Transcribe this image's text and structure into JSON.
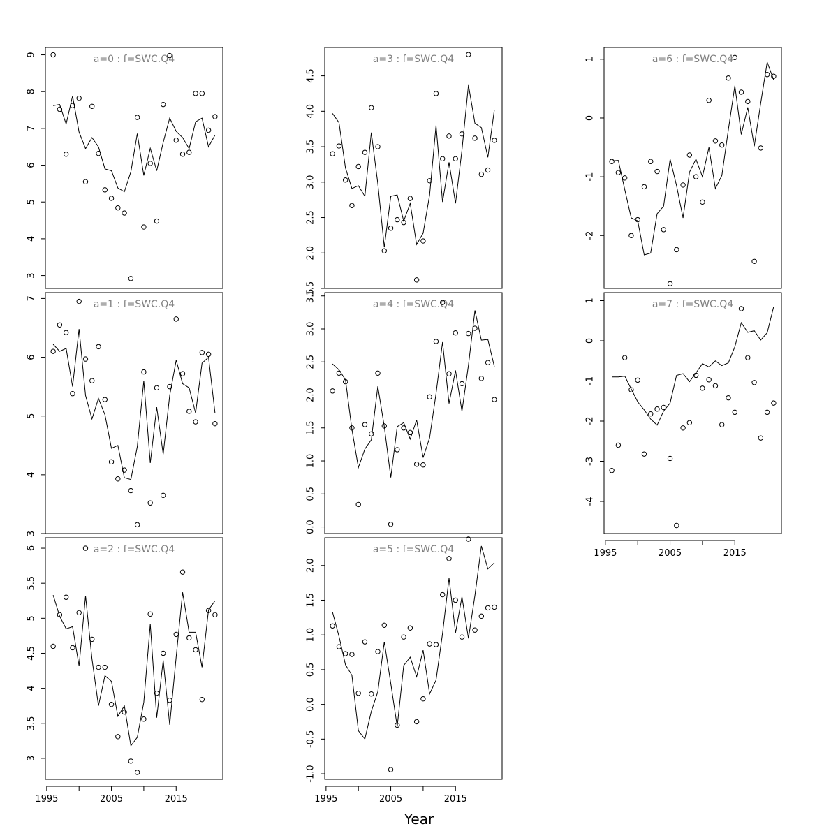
{
  "chart_data": {
    "type": "scatter",
    "xlabel": "Year",
    "x": [
      1996,
      1997,
      1998,
      1999,
      2000,
      2001,
      2002,
      2003,
      2004,
      2005,
      2006,
      2007,
      2008,
      2009,
      2010,
      2011,
      2012,
      2013,
      2014,
      2015,
      2016,
      2017,
      2018,
      2019,
      2020,
      2021
    ],
    "x_ticks": [
      1995,
      2005,
      2015
    ],
    "x_range": [
      1994.8,
      2022.2
    ],
    "panels": [
      {
        "title": "a=0  :  f=SWC.Q4",
        "yticks": [
          3,
          4,
          5,
          6,
          7,
          8,
          9
        ],
        "ylim": [
          2.65,
          9.2
        ],
        "observed": [
          9.0,
          7.52,
          6.3,
          7.62,
          7.82,
          5.55,
          7.6,
          6.32,
          5.33,
          5.1,
          4.84,
          4.7,
          2.92,
          7.3,
          4.32,
          6.05,
          4.48,
          7.65,
          8.98,
          6.68,
          6.3,
          6.35,
          7.95,
          7.95,
          6.95,
          7.32
        ],
        "fitted": [
          7.62,
          7.65,
          7.12,
          7.88,
          6.9,
          6.45,
          6.75,
          6.5,
          5.9,
          5.85,
          5.38,
          5.28,
          5.82,
          6.86,
          5.72,
          6.46,
          5.85,
          6.62,
          7.28,
          6.92,
          6.75,
          6.45,
          7.18,
          7.28,
          6.5,
          6.82
        ]
      },
      {
        "title": "a=1  :  f=SWC.Q4",
        "yticks": [
          3,
          4,
          5,
          6,
          7
        ],
        "ylim": [
          3.0,
          7.1
        ],
        "observed": [
          6.1,
          6.55,
          6.42,
          5.38,
          6.95,
          5.97,
          5.6,
          6.18,
          5.28,
          4.22,
          3.93,
          4.08,
          3.73,
          3.15,
          5.75,
          3.52,
          5.48,
          3.65,
          5.5,
          6.65,
          5.72,
          5.08,
          4.9,
          6.08,
          6.05,
          4.87
        ],
        "fitted": [
          6.22,
          6.1,
          6.15,
          5.5,
          6.48,
          5.35,
          4.95,
          5.3,
          5.02,
          4.45,
          4.5,
          3.95,
          3.92,
          4.48,
          5.6,
          4.2,
          5.15,
          4.35,
          5.35,
          5.95,
          5.55,
          5.48,
          5.05,
          5.9,
          6.0,
          5.05
        ]
      },
      {
        "title": "a=2  :  f=SWC.Q4",
        "yticks": [
          3.0,
          3.5,
          4.0,
          4.5,
          5.0,
          5.5,
          6.0
        ],
        "ylim": [
          2.7,
          6.15
        ],
        "observed": [
          4.6,
          5.05,
          5.3,
          4.58,
          5.08,
          6.0,
          4.7,
          4.3,
          4.3,
          3.77,
          3.31,
          3.66,
          2.96,
          2.8,
          3.56,
          5.06,
          3.93,
          4.5,
          3.83,
          4.77,
          5.66,
          4.72,
          4.55,
          3.84,
          5.11,
          5.05
        ],
        "fitted": [
          5.33,
          5.03,
          4.85,
          4.88,
          4.32,
          5.32,
          4.42,
          3.75,
          4.18,
          4.1,
          3.6,
          3.75,
          3.18,
          3.3,
          3.8,
          4.92,
          3.58,
          4.4,
          3.48,
          4.45,
          5.37,
          4.8,
          4.8,
          4.3,
          5.12,
          5.25
        ]
      },
      {
        "title": "a=3  :  f=SWC.Q4",
        "yticks": [
          1.5,
          2.0,
          2.5,
          3.0,
          3.5,
          4.0,
          4.5
        ],
        "yticklabels": [
          "1.5",
          "2.0",
          "2.5",
          "3.0",
          "3.5",
          "4.0",
          "4.5"
        ],
        "ylim": [
          1.5,
          4.9
        ],
        "observed": [
          3.4,
          3.51,
          3.03,
          2.67,
          3.22,
          3.42,
          4.05,
          3.5,
          2.03,
          2.35,
          2.47,
          2.43,
          2.77,
          1.62,
          2.17,
          3.02,
          4.25,
          3.33,
          3.65,
          3.33,
          3.68,
          4.8,
          3.62,
          3.11,
          3.17,
          3.59
        ],
        "fitted": [
          3.97,
          3.84,
          3.2,
          2.91,
          2.95,
          2.8,
          3.7,
          2.98,
          2.08,
          2.8,
          2.82,
          2.45,
          2.7,
          2.12,
          2.28,
          2.82,
          3.8,
          2.72,
          3.28,
          2.7,
          3.45,
          4.37,
          3.83,
          3.77,
          3.35,
          4.02
        ]
      },
      {
        "title": "a=4  :  f=SWC.Q4",
        "yticks": [
          0.0,
          0.5,
          1.0,
          1.5,
          2.0,
          2.5,
          3.0,
          3.5
        ],
        "yticklabels": [
          "0.0",
          "0.5",
          "1.0",
          "1.5",
          "2.0",
          "2.5",
          "3.0",
          "3.5"
        ],
        "ylim": [
          -0.1,
          3.55
        ],
        "observed": [
          2.06,
          2.33,
          2.2,
          1.5,
          0.34,
          1.55,
          1.41,
          2.33,
          1.53,
          0.04,
          1.17,
          1.5,
          1.43,
          0.95,
          0.94,
          1.97,
          2.81,
          3.4,
          2.32,
          2.94,
          2.17,
          2.93,
          3.01,
          2.25,
          2.49,
          1.93
        ],
        "fitted": [
          2.47,
          2.38,
          2.23,
          1.48,
          0.9,
          1.18,
          1.32,
          2.13,
          1.52,
          0.75,
          1.52,
          1.58,
          1.33,
          1.62,
          1.05,
          1.35,
          2.02,
          2.8,
          1.87,
          2.37,
          1.75,
          2.45,
          3.28,
          2.83,
          2.84,
          2.43
        ]
      },
      {
        "title": "a=5  :  f=SWC.Q4",
        "yticks": [
          -1.0,
          -0.5,
          0.0,
          0.5,
          1.0,
          1.5,
          2.0
        ],
        "yticklabels": [
          "-1.0",
          "-0.5",
          "0.0",
          "0.5",
          "1.0",
          "1.5",
          "2.0"
        ],
        "ylim": [
          -1.08,
          2.4
        ],
        "observed": [
          1.13,
          0.83,
          0.73,
          0.72,
          0.16,
          0.9,
          0.15,
          0.76,
          1.14,
          -0.94,
          -0.3,
          0.97,
          1.1,
          -0.25,
          0.08,
          0.87,
          0.86,
          1.58,
          2.1,
          1.5,
          0.97,
          2.38,
          1.07,
          1.27,
          1.39,
          1.4
        ],
        "fitted": [
          1.33,
          0.98,
          0.57,
          0.42,
          -0.38,
          -0.5,
          -0.1,
          0.18,
          0.9,
          0.3,
          -0.32,
          0.56,
          0.68,
          0.4,
          0.78,
          0.15,
          0.35,
          1.02,
          1.82,
          1.03,
          1.55,
          0.95,
          1.57,
          2.28,
          1.95,
          2.04
        ]
      },
      {
        "title": "a=6  :  f=SWC.Q4",
        "yticks": [
          -2,
          -1,
          0,
          1
        ],
        "ylim": [
          -2.9,
          1.2
        ],
        "observed": [
          -0.74,
          -0.93,
          -1.02,
          -2.0,
          -1.73,
          -1.17,
          -0.74,
          -0.91,
          -1.9,
          -2.82,
          -2.24,
          -1.14,
          -0.63,
          -1.0,
          -1.43,
          0.3,
          -0.39,
          -0.46,
          0.68,
          1.03,
          0.44,
          0.28,
          -2.44,
          -0.51,
          0.74,
          0.71
        ],
        "fitted": [
          -0.73,
          -0.72,
          -1.22,
          -1.7,
          -1.75,
          -2.33,
          -2.3,
          -1.63,
          -1.5,
          -0.7,
          -1.15,
          -1.7,
          -0.92,
          -0.7,
          -1.0,
          -0.5,
          -1.2,
          -0.98,
          -0.2,
          0.55,
          -0.28,
          0.18,
          -0.48,
          0.25,
          0.95,
          0.65
        ]
      },
      {
        "title": "a=7  :  f=SWC.Q4",
        "yticks": [
          -4,
          -3,
          -2,
          -1,
          0,
          1
        ],
        "ylim": [
          -4.8,
          1.2
        ],
        "observed": [
          -3.23,
          -2.6,
          -0.42,
          -1.22,
          -0.98,
          -2.82,
          -1.82,
          -1.7,
          -1.66,
          -2.93,
          -4.6,
          -2.17,
          -2.04,
          -0.86,
          -1.18,
          -0.97,
          -1.12,
          -2.09,
          -1.42,
          -1.78,
          0.8,
          -0.42,
          -1.04,
          -2.42,
          -1.78,
          -1.55
        ],
        "fitted": [
          -0.9,
          -0.9,
          -0.88,
          -1.2,
          -1.52,
          -1.72,
          -1.95,
          -2.1,
          -1.75,
          -1.55,
          -0.86,
          -0.82,
          -1.02,
          -0.8,
          -0.57,
          -0.65,
          -0.5,
          -0.62,
          -0.55,
          -0.15,
          0.45,
          0.21,
          0.25,
          0.02,
          0.2,
          0.85
        ]
      }
    ]
  }
}
